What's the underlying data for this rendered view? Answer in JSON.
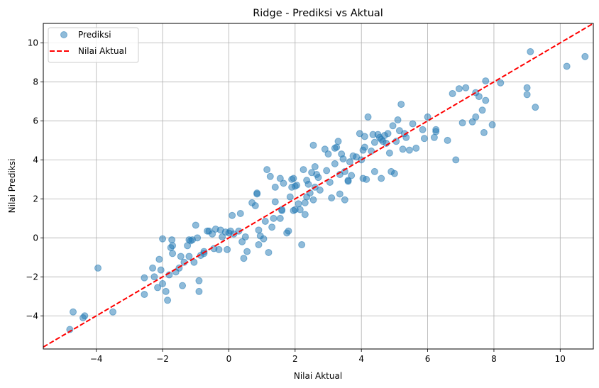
{
  "chart_data": {
    "type": "scatter",
    "title": "Ridge - Prediksi vs Aktual",
    "xlabel": "Nilai Aktual",
    "ylabel": "Nilai Prediksi",
    "xlim": [
      -5.6,
      11.0
    ],
    "ylim": [
      -5.7,
      11.0
    ],
    "xticks": [
      -4,
      -2,
      0,
      2,
      4,
      6,
      8,
      10
    ],
    "yticks": [
      -4,
      -2,
      0,
      2,
      4,
      6,
      8,
      10
    ],
    "grid": true,
    "legend_position": "top-left",
    "series": [
      {
        "name": "Prediksi",
        "kind": "scatter",
        "color": "#1f77b4",
        "alpha": 0.5,
        "points": [
          [
            -4.8,
            -4.7
          ],
          [
            -4.7,
            -3.8
          ],
          [
            -4.4,
            -4.1
          ],
          [
            -4.35,
            -4.0
          ],
          [
            -3.5,
            -3.8
          ],
          [
            -3.95,
            -1.55
          ],
          [
            -2.55,
            -2.05
          ],
          [
            -2.55,
            -2.9
          ],
          [
            -2.3,
            -1.55
          ],
          [
            -2.25,
            -2.0
          ],
          [
            -2.15,
            -2.55
          ],
          [
            -2.1,
            -1.1
          ],
          [
            -2.05,
            -1.65
          ],
          [
            -2.0,
            -2.35
          ],
          [
            -2.0,
            -0.05
          ],
          [
            -1.9,
            -2.75
          ],
          [
            -1.85,
            -3.2
          ],
          [
            -1.8,
            -1.9
          ],
          [
            -1.75,
            -0.5
          ],
          [
            -1.7,
            -0.8
          ],
          [
            -1.72,
            -0.1
          ],
          [
            -1.7,
            -0.4
          ],
          [
            -1.6,
            -1.75
          ],
          [
            -1.5,
            -1.55
          ],
          [
            -1.45,
            -0.95
          ],
          [
            -1.4,
            -2.45
          ],
          [
            -1.35,
            -1.25
          ],
          [
            -1.25,
            -0.4
          ],
          [
            -1.2,
            -0.95
          ],
          [
            -1.15,
            -0.15
          ],
          [
            -1.1,
            -0.1
          ],
          [
            -1.05,
            -1.25
          ],
          [
            -1.0,
            0.65
          ],
          [
            -0.95,
            0.0
          ],
          [
            -0.9,
            -2.2
          ],
          [
            -0.9,
            -2.75
          ],
          [
            -0.85,
            -0.9
          ],
          [
            -0.75,
            -0.7
          ],
          [
            -0.75,
            -0.8
          ],
          [
            -0.6,
            0.35
          ],
          [
            -0.5,
            0.2
          ],
          [
            -0.45,
            -0.55
          ],
          [
            -0.4,
            0.45
          ],
          [
            -0.3,
            -0.6
          ],
          [
            -0.25,
            0.4
          ],
          [
            -0.2,
            0.05
          ],
          [
            -0.1,
            0.3
          ],
          [
            -0.05,
            -0.6
          ],
          [
            0.05,
            0.35
          ],
          [
            0.1,
            1.15
          ],
          [
            0.15,
            0.2
          ],
          [
            0.3,
            0.35
          ],
          [
            0.35,
            1.25
          ],
          [
            0.4,
            -0.2
          ],
          [
            0.45,
            -1.05
          ],
          [
            0.5,
            0.05
          ],
          [
            0.55,
            -0.7
          ],
          [
            0.7,
            1.8
          ],
          [
            0.8,
            1.65
          ],
          [
            0.85,
            2.25
          ],
          [
            0.85,
            2.3
          ],
          [
            0.9,
            -0.35
          ],
          [
            0.9,
            0.4
          ],
          [
            0.95,
            0.1
          ],
          [
            1.05,
            -0.05
          ],
          [
            1.1,
            0.85
          ],
          [
            1.15,
            3.5
          ],
          [
            1.2,
            -0.75
          ],
          [
            1.25,
            3.15
          ],
          [
            1.3,
            0.55
          ],
          [
            1.35,
            1.0
          ],
          [
            1.4,
            1.85
          ],
          [
            1.4,
            2.6
          ],
          [
            1.55,
            3.05
          ],
          [
            1.55,
            1.0
          ],
          [
            1.6,
            1.45
          ],
          [
            1.6,
            1.4
          ],
          [
            1.65,
            2.8
          ],
          [
            1.75,
            0.25
          ],
          [
            1.8,
            0.35
          ],
          [
            1.85,
            2.1
          ],
          [
            1.9,
            2.6
          ],
          [
            1.9,
            3.0
          ],
          [
            1.95,
            3.05
          ],
          [
            2.0,
            1.45
          ],
          [
            2.05,
            2.7
          ],
          [
            2.1,
            1.75
          ],
          [
            2.15,
            1.45
          ],
          [
            2.2,
            -0.35
          ],
          [
            2.25,
            3.5
          ],
          [
            2.3,
            1.2
          ],
          [
            2.3,
            1.8
          ],
          [
            2.35,
            2.1
          ],
          [
            2.35,
            2.95
          ],
          [
            2.4,
            2.75
          ],
          [
            2.45,
            2.3
          ],
          [
            2.5,
            3.35
          ],
          [
            2.55,
            1.95
          ],
          [
            2.55,
            4.75
          ],
          [
            2.6,
            2.6
          ],
          [
            2.6,
            3.65
          ],
          [
            2.65,
            3.25
          ],
          [
            2.7,
            3.1
          ],
          [
            2.75,
            2.45
          ],
          [
            2.9,
            4.55
          ],
          [
            2.95,
            3.45
          ],
          [
            3.0,
            4.3
          ],
          [
            3.05,
            2.85
          ],
          [
            3.1,
            2.05
          ],
          [
            3.2,
            3.8
          ],
          [
            3.2,
            4.6
          ],
          [
            3.3,
            4.95
          ],
          [
            3.35,
            3.25
          ],
          [
            3.35,
            2.25
          ],
          [
            3.4,
            4.3
          ],
          [
            3.45,
            4.05
          ],
          [
            3.5,
            1.95
          ],
          [
            3.5,
            3.4
          ],
          [
            3.6,
            2.9
          ],
          [
            3.65,
            3.9
          ],
          [
            3.7,
            3.2
          ],
          [
            3.75,
            4.2
          ],
          [
            3.85,
            4.15
          ],
          [
            3.95,
            5.35
          ],
          [
            4.0,
            4.0
          ],
          [
            4.05,
            3.05
          ],
          [
            4.05,
            4.5
          ],
          [
            4.1,
            4.65
          ],
          [
            4.1,
            5.2
          ],
          [
            4.15,
            3.0
          ],
          [
            4.2,
            6.2
          ],
          [
            4.3,
            4.45
          ],
          [
            4.35,
            5.3
          ],
          [
            4.4,
            3.4
          ],
          [
            4.4,
            4.9
          ],
          [
            4.5,
            5.3
          ],
          [
            4.6,
            3.05
          ],
          [
            4.6,
            5.05
          ],
          [
            4.65,
            4.95
          ],
          [
            4.7,
            5.25
          ],
          [
            4.75,
            4.85
          ],
          [
            4.8,
            5.35
          ],
          [
            4.85,
            4.35
          ],
          [
            4.9,
            3.4
          ],
          [
            4.95,
            5.75
          ],
          [
            5.0,
            3.3
          ],
          [
            5.05,
            4.95
          ],
          [
            5.1,
            6.05
          ],
          [
            5.15,
            5.5
          ],
          [
            5.2,
            6.85
          ],
          [
            5.25,
            4.55
          ],
          [
            5.3,
            5.35
          ],
          [
            5.35,
            5.15
          ],
          [
            5.45,
            4.5
          ],
          [
            5.55,
            5.85
          ],
          [
            5.65,
            4.6
          ],
          [
            5.85,
            5.55
          ],
          [
            5.9,
            5.1
          ],
          [
            6.0,
            6.2
          ],
          [
            6.2,
            5.15
          ],
          [
            6.25,
            5.45
          ],
          [
            6.25,
            5.55
          ],
          [
            6.6,
            5.0
          ],
          [
            6.75,
            7.4
          ],
          [
            6.85,
            4.0
          ],
          [
            6.95,
            7.65
          ],
          [
            7.05,
            5.9
          ],
          [
            7.15,
            7.7
          ],
          [
            7.35,
            5.95
          ],
          [
            7.45,
            6.2
          ],
          [
            7.45,
            7.45
          ],
          [
            7.55,
            7.25
          ],
          [
            7.65,
            6.55
          ],
          [
            7.7,
            5.4
          ],
          [
            7.75,
            8.05
          ],
          [
            7.75,
            7.05
          ],
          [
            7.95,
            5.8
          ],
          [
            8.2,
            7.95
          ],
          [
            9.0,
            7.35
          ],
          [
            9.0,
            7.7
          ],
          [
            9.1,
            9.55
          ],
          [
            9.25,
            6.7
          ],
          [
            10.2,
            8.8
          ],
          [
            10.75,
            9.3
          ],
          [
            -1.2,
            -0.1
          ],
          [
            2.0,
            2.65
          ],
          [
            0.0,
            0.25
          ],
          [
            3.6,
            2.95
          ],
          [
            -0.65,
            0.35
          ],
          [
            1.95,
            1.4
          ],
          [
            4.55,
            5.15
          ],
          [
            3.25,
            4.65
          ]
        ]
      },
      {
        "name": "Nilai Aktual",
        "kind": "line",
        "color": "#ff0000",
        "dash": "dashed",
        "points": [
          [
            -5.6,
            -5.6
          ],
          [
            11.0,
            11.0
          ]
        ]
      }
    ]
  }
}
